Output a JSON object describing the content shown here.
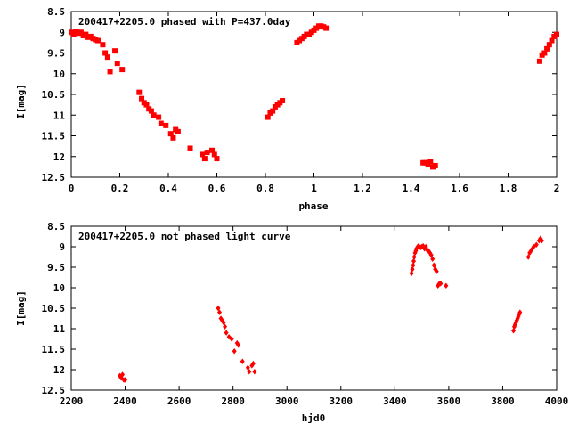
{
  "chart_data": [
    {
      "type": "scatter",
      "title": "200417+2205.0 phased with P=437.0day",
      "xlabel": "phase",
      "ylabel": "I[mag]",
      "xlim": [
        0,
        2
      ],
      "ylim": [
        8.5,
        12.5
      ],
      "y_inverted": true,
      "grid": false,
      "legend": "none",
      "marker": "filled-square",
      "x_ticks": [
        0,
        0.2,
        0.4,
        0.6,
        0.8,
        1,
        1.2,
        1.4,
        1.6,
        1.8,
        2
      ],
      "x_tick_labels": [
        "0",
        "0.2",
        "0.4",
        "0.6",
        "0.8",
        "1",
        "1.2",
        "1.4",
        "1.6",
        "1.8",
        "2"
      ],
      "y_ticks": [
        8.5,
        9,
        9.5,
        10,
        10.5,
        11,
        11.5,
        12,
        12.5
      ],
      "y_tick_labels": [
        "8.5",
        "9",
        "9.5",
        "10",
        "10.5",
        "11",
        "11.5",
        "12",
        "12.5"
      ],
      "colors": {
        "points": "#ff0000",
        "axes": "#000000"
      },
      "series": [
        {
          "x": [
            0.0,
            0.01,
            0.02,
            0.03,
            0.04,
            0.05,
            0.06,
            0.07,
            0.08,
            0.09,
            0.1,
            0.11,
            0.13,
            0.14,
            0.15,
            0.16,
            0.18,
            0.19,
            0.21,
            0.28,
            0.29,
            0.3,
            0.31,
            0.32,
            0.33,
            0.34,
            0.36,
            0.37,
            0.39,
            0.41,
            0.42,
            0.43,
            0.44,
            0.49,
            0.54,
            0.55,
            0.56,
            0.58,
            0.59,
            0.6,
            0.81,
            0.82,
            0.83,
            0.84,
            0.85,
            0.86,
            0.87,
            0.93,
            0.94,
            0.95,
            0.96,
            0.97,
            0.98,
            0.99,
            1.0,
            1.01,
            1.02,
            1.03,
            1.04,
            1.05,
            1.45,
            1.46,
            1.47,
            1.48,
            1.49,
            1.5,
            1.93,
            1.94,
            1.95,
            1.96,
            1.97,
            1.98,
            1.99,
            2.0
          ],
          "y": [
            9.0,
            9.05,
            8.98,
            9.02,
            9.0,
            9.08,
            9.05,
            9.12,
            9.1,
            9.15,
            9.18,
            9.2,
            9.3,
            9.5,
            9.6,
            9.95,
            9.45,
            9.75,
            9.9,
            10.45,
            10.6,
            10.7,
            10.75,
            10.85,
            10.9,
            11.0,
            11.05,
            11.2,
            11.25,
            11.45,
            11.55,
            11.35,
            11.4,
            11.8,
            11.95,
            12.05,
            11.9,
            11.85,
            11.95,
            12.05,
            11.05,
            10.95,
            10.9,
            10.8,
            10.75,
            10.7,
            10.65,
            9.25,
            9.2,
            9.15,
            9.1,
            9.05,
            9.05,
            9.0,
            8.95,
            8.9,
            8.85,
            8.85,
            8.87,
            8.9,
            12.15,
            12.15,
            12.2,
            12.12,
            12.25,
            12.22,
            9.7,
            9.55,
            9.5,
            9.4,
            9.3,
            9.2,
            9.1,
            9.05
          ]
        }
      ]
    },
    {
      "type": "scatter",
      "title": "200417+2205.0 not phased light curve",
      "xlabel": "hjd0",
      "ylabel": "I[mag]",
      "xlim": [
        2200,
        4000
      ],
      "ylim": [
        8.5,
        12.5
      ],
      "y_inverted": true,
      "grid": false,
      "legend": "none",
      "marker": "diamond",
      "x_ticks": [
        2200,
        2400,
        2600,
        2800,
        3000,
        3200,
        3400,
        3600,
        3800,
        4000
      ],
      "x_tick_labels": [
        "2200",
        "2400",
        "2600",
        "2800",
        "3000",
        "3200",
        "3400",
        "3600",
        "3800",
        "4000"
      ],
      "y_ticks": [
        8.5,
        9,
        9.5,
        10,
        10.5,
        11,
        11.5,
        12,
        12.5
      ],
      "y_tick_labels": [
        "8.5",
        "9",
        "9.5",
        "10",
        "10.5",
        "11",
        "11.5",
        "12",
        "12.5"
      ],
      "colors": {
        "points": "#ff0000",
        "axes": "#000000"
      },
      "series": [
        {
          "x": [
            2380,
            2385,
            2390,
            2395,
            2400,
            2745,
            2750,
            2755,
            2760,
            2765,
            2770,
            2775,
            2785,
            2795,
            2805,
            2815,
            2820,
            2835,
            2855,
            2860,
            2870,
            2875,
            2880,
            3462,
            3465,
            3468,
            3470,
            3472,
            3475,
            3478,
            3480,
            3485,
            3488,
            3490,
            3495,
            3500,
            3505,
            3510,
            3515,
            3520,
            3525,
            3530,
            3535,
            3540,
            3545,
            3550,
            3555,
            3560,
            3565,
            3570,
            3590,
            3840,
            3843,
            3846,
            3849,
            3852,
            3855,
            3858,
            3861,
            3864,
            3895,
            3900,
            3905,
            3910,
            3915,
            3925,
            3935,
            3940,
            3945
          ],
          "y": [
            12.15,
            12.2,
            12.12,
            12.25,
            12.25,
            10.5,
            10.6,
            10.75,
            10.8,
            10.85,
            10.95,
            11.1,
            11.2,
            11.25,
            11.55,
            11.35,
            11.4,
            11.8,
            11.95,
            12.05,
            11.9,
            11.85,
            12.05,
            9.65,
            9.55,
            9.45,
            9.35,
            9.25,
            9.15,
            9.1,
            9.05,
            9.0,
            8.98,
            9.0,
            9.02,
            9.0,
            8.98,
            9.05,
            9.0,
            9.08,
            9.1,
            9.15,
            9.2,
            9.3,
            9.45,
            9.55,
            9.6,
            9.95,
            9.9,
            9.9,
            9.95,
            11.05,
            10.95,
            10.9,
            10.85,
            10.8,
            10.75,
            10.7,
            10.65,
            10.6,
            9.25,
            9.15,
            9.1,
            9.05,
            9.0,
            8.95,
            8.85,
            8.8,
            8.85
          ]
        }
      ]
    }
  ]
}
